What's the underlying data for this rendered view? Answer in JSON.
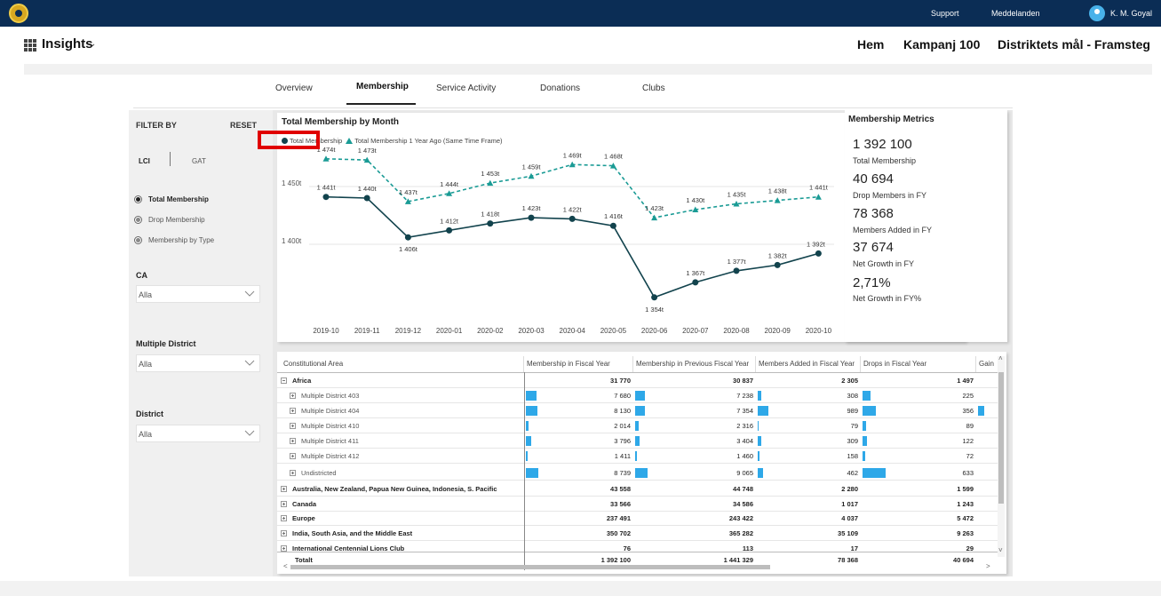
{
  "topbar": {
    "support": "Support",
    "messages": "Meddelanden",
    "user": "K. M. Goyal",
    "icons": {
      "logo": "lions-logo",
      "avatar": "user-avatar-icon"
    }
  },
  "header": {
    "app_title": "Insights",
    "nav": [
      "Hem",
      "Kampanj 100",
      "Distriktets mål - Framsteg"
    ]
  },
  "tabs": [
    {
      "label": "Overview",
      "active": false
    },
    {
      "label": "Membership",
      "active": true
    },
    {
      "label": "Service Activity",
      "active": false
    },
    {
      "label": "Donations",
      "active": false
    },
    {
      "label": "Clubs",
      "active": false
    }
  ],
  "filter": {
    "title": "FILTER BY",
    "reset": "RESET",
    "toggle": [
      "LCI",
      "GAT"
    ],
    "radios": [
      {
        "label": "Total Membership",
        "selected": true
      },
      {
        "label": "Drop Membership",
        "selected": false
      },
      {
        "label": "Membership by Type",
        "selected": false
      }
    ],
    "slicers": [
      {
        "label": "CA",
        "value": "Alla"
      },
      {
        "label": "Multiple District",
        "value": "Alla"
      },
      {
        "label": "District",
        "value": "Alla"
      }
    ]
  },
  "chart": {
    "title": "Total Membership by Month",
    "legend": [
      "Total Membership",
      "Total Membership 1 Year Ago (Same Time Frame)"
    ]
  },
  "chart_data": {
    "type": "line",
    "x": [
      "2019-10",
      "2019-11",
      "2019-12",
      "2020-01",
      "2020-02",
      "2020-03",
      "2020-04",
      "2020-05",
      "2020-06",
      "2020-07",
      "2020-08",
      "2020-09",
      "2020-10"
    ],
    "y_ticks": [
      "1 400t",
      "1 450t"
    ],
    "y_tick_values": [
      1400,
      1450
    ],
    "ylim": [
      1350,
      1480
    ],
    "grid": true,
    "series": [
      {
        "name": "Total Membership",
        "values": [
          1441,
          1440,
          1406,
          1412,
          1418,
          1423,
          1422,
          1416,
          1354,
          1367,
          1377,
          1382,
          1392
        ],
        "labels": [
          "1 441t",
          "1 440t",
          "1 406t",
          "1 412t",
          "1 418t",
          "1 423t",
          "1 422t",
          "1 416t",
          "1 354t",
          "1 367t",
          "1 377t",
          "1 382t",
          "1 392t"
        ],
        "color": "#12434d",
        "style": "solid",
        "marker": "circle"
      },
      {
        "name": "Total Membership 1 Year Ago (Same Time Frame)",
        "values": [
          1474,
          1473,
          1437,
          1444,
          1453,
          1459,
          1469,
          1468,
          1423,
          1430,
          1435,
          1438,
          1441
        ],
        "labels": [
          "1 474t",
          "1 473t",
          "1 437t",
          "1 444t",
          "1 453t",
          "1 459t",
          "1 469t",
          "1 468t",
          "1 423t",
          "1 430t",
          "1 435t",
          "1 438t",
          "1 441t"
        ],
        "color": "#1a9b95",
        "style": "dashed",
        "marker": "triangle"
      }
    ]
  },
  "metrics": {
    "title": "Membership Metrics",
    "items": [
      {
        "value": "1 392 100",
        "label": "Total Membership"
      },
      {
        "value": "40 694",
        "label": "Drop Members in FY"
      },
      {
        "value": "78 368",
        "label": "Members Added in FY"
      },
      {
        "value": "37 674",
        "label": "Net Growth in FY"
      },
      {
        "value": "2,71%",
        "label": "Net Growth in FY%"
      }
    ]
  },
  "table": {
    "headers": [
      "Constitutional Area",
      "Membership in Fiscal Year",
      "Membership in Previous Fiscal Year",
      "Members Added in Fiscal Year",
      "Drops in Fiscal Year",
      "Gain"
    ],
    "rows": [
      {
        "name": "Africa",
        "level": 0,
        "expanded": true,
        "values": [
          "31 770",
          "30 837",
          "2 305",
          "1 497"
        ]
      },
      {
        "name": "Multiple District 403",
        "level": 1,
        "values": [
          "7 680",
          "7 238",
          "308",
          "225"
        ],
        "bars": [
          0.87,
          0.8,
          0.31,
          0.36
        ],
        "gain_bar": 0
      },
      {
        "name": "Multiple District 404",
        "level": 1,
        "values": [
          "8 130",
          "7 354",
          "989",
          "356"
        ],
        "bars": [
          0.93,
          0.81,
          1.0,
          0.56
        ],
        "gain_bar": 1
      },
      {
        "name": "Multiple District 410",
        "level": 1,
        "values": [
          "2 014",
          "2 316",
          "79",
          "89"
        ],
        "bars": [
          0.23,
          0.26,
          0.08,
          0.14
        ],
        "gain_bar": 0
      },
      {
        "name": "Multiple District 411",
        "level": 1,
        "values": [
          "3 796",
          "3 404",
          "309",
          "122"
        ],
        "bars": [
          0.43,
          0.38,
          0.31,
          0.19
        ],
        "gain_bar": 0
      },
      {
        "name": "Multiple District 412",
        "level": 1,
        "values": [
          "1 411",
          "1 460",
          "158",
          "72"
        ],
        "bars": [
          0.16,
          0.16,
          0.16,
          0.11
        ],
        "gain_bar": 0
      },
      {
        "name": "Undistricted",
        "level": 1,
        "values": [
          "8 739",
          "9 065",
          "462",
          "633"
        ],
        "bars": [
          1.0,
          1.0,
          0.47,
          1.0
        ],
        "gain_bar": 0
      },
      {
        "name": "Australia, New Zealand, Papua New Guinea, Indonesia, S. Pacific",
        "level": 0,
        "values": [
          "43 558",
          "44 748",
          "2 280",
          "1 599"
        ]
      },
      {
        "name": "Canada",
        "level": 0,
        "values": [
          "33 566",
          "34 586",
          "1 017",
          "1 243"
        ]
      },
      {
        "name": "Europe",
        "level": 0,
        "values": [
          "237 491",
          "243 422",
          "4 037",
          "5 472"
        ]
      },
      {
        "name": "India, South Asia, and the Middle East",
        "level": 0,
        "values": [
          "350 702",
          "365 282",
          "35 109",
          "9 263"
        ]
      },
      {
        "name": "International Centennial Lions Club",
        "level": 0,
        "values": [
          "76",
          "113",
          "17",
          "29"
        ]
      }
    ],
    "total": {
      "name": "Totalt",
      "values": [
        "1 392 100",
        "1 441 329",
        "78 368",
        "40 694"
      ]
    }
  }
}
